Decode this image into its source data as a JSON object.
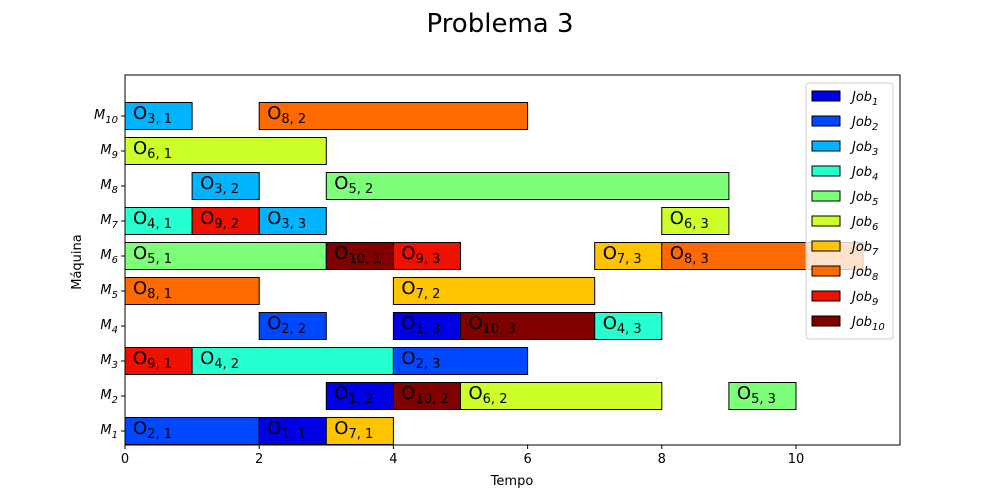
{
  "chart_data": {
    "type": "gantt",
    "title": "Problema 3",
    "xlabel": "Tempo",
    "ylabel": "Máquina",
    "xlim": [
      0,
      11.55
    ],
    "xticks": [
      0,
      2,
      4,
      6,
      8,
      10
    ],
    "machines": [
      {
        "name": "M",
        "sub": "1"
      },
      {
        "name": "M",
        "sub": "2"
      },
      {
        "name": "M",
        "sub": "3"
      },
      {
        "name": "M",
        "sub": "4"
      },
      {
        "name": "M",
        "sub": "5"
      },
      {
        "name": "M",
        "sub": "6"
      },
      {
        "name": "M",
        "sub": "7"
      },
      {
        "name": "M",
        "sub": "8"
      },
      {
        "name": "M",
        "sub": "9"
      },
      {
        "name": "M",
        "sub": "10"
      }
    ],
    "jobs": [
      {
        "name": "Job",
        "sub": "1",
        "color": "#0000e6"
      },
      {
        "name": "Job",
        "sub": "2",
        "color": "#0048ff"
      },
      {
        "name": "Job",
        "sub": "3",
        "color": "#00b4ff"
      },
      {
        "name": "Job",
        "sub": "4",
        "color": "#26ffcf"
      },
      {
        "name": "Job",
        "sub": "5",
        "color": "#7dff7a"
      },
      {
        "name": "Job",
        "sub": "6",
        "color": "#cdff29"
      },
      {
        "name": "Job",
        "sub": "7",
        "color": "#ffc400"
      },
      {
        "name": "Job",
        "sub": "8",
        "color": "#ff6a00"
      },
      {
        "name": "Job",
        "sub": "9",
        "color": "#f01000"
      },
      {
        "name": "Job",
        "sub": "10",
        "color": "#800000"
      }
    ],
    "legend_position": "upper right",
    "operations": [
      {
        "machine": 1,
        "job": 2,
        "op": 1,
        "start": 0,
        "end": 2,
        "label": "O",
        "sub": "2, 1"
      },
      {
        "machine": 1,
        "job": 1,
        "op": 1,
        "start": 2,
        "end": 3,
        "label": "O",
        "sub": "1, 1"
      },
      {
        "machine": 1,
        "job": 7,
        "op": 1,
        "start": 3,
        "end": 4,
        "label": "O",
        "sub": "7, 1"
      },
      {
        "machine": 2,
        "job": 1,
        "op": 2,
        "start": 3,
        "end": 4,
        "label": "O",
        "sub": "1, 2"
      },
      {
        "machine": 2,
        "job": 10,
        "op": 2,
        "start": 4,
        "end": 5,
        "label": "O",
        "sub": "10, 2"
      },
      {
        "machine": 2,
        "job": 6,
        "op": 2,
        "start": 5,
        "end": 8,
        "label": "O",
        "sub": "6, 2"
      },
      {
        "machine": 2,
        "job": 5,
        "op": 3,
        "start": 9,
        "end": 10,
        "label": "O",
        "sub": "5, 3"
      },
      {
        "machine": 3,
        "job": 9,
        "op": 1,
        "start": 0,
        "end": 1,
        "label": "O",
        "sub": "9, 1"
      },
      {
        "machine": 3,
        "job": 4,
        "op": 2,
        "start": 1,
        "end": 4,
        "label": "O",
        "sub": "4, 2"
      },
      {
        "machine": 3,
        "job": 2,
        "op": 3,
        "start": 4,
        "end": 6,
        "label": "O",
        "sub": "2, 3"
      },
      {
        "machine": 4,
        "job": 2,
        "op": 2,
        "start": 2,
        "end": 3,
        "label": "O",
        "sub": "2, 2"
      },
      {
        "machine": 4,
        "job": 1,
        "op": 3,
        "start": 4,
        "end": 5,
        "label": "O",
        "sub": "1, 3"
      },
      {
        "machine": 4,
        "job": 10,
        "op": 3,
        "start": 5,
        "end": 7,
        "label": "O",
        "sub": "10, 3"
      },
      {
        "machine": 4,
        "job": 4,
        "op": 3,
        "start": 7,
        "end": 8,
        "label": "O",
        "sub": "4, 3"
      },
      {
        "machine": 5,
        "job": 8,
        "op": 1,
        "start": 0,
        "end": 2,
        "label": "O",
        "sub": "8, 1"
      },
      {
        "machine": 5,
        "job": 7,
        "op": 2,
        "start": 4,
        "end": 7,
        "label": "O",
        "sub": "7, 2"
      },
      {
        "machine": 6,
        "job": 5,
        "op": 1,
        "start": 0,
        "end": 3,
        "label": "O",
        "sub": "5, 1"
      },
      {
        "machine": 6,
        "job": 10,
        "op": 1,
        "start": 3,
        "end": 4,
        "label": "O",
        "sub": "10, 1"
      },
      {
        "machine": 6,
        "job": 9,
        "op": 3,
        "start": 4,
        "end": 5,
        "label": "O",
        "sub": "9, 3"
      },
      {
        "machine": 6,
        "job": 7,
        "op": 3,
        "start": 7,
        "end": 8,
        "label": "O",
        "sub": "7, 3"
      },
      {
        "machine": 6,
        "job": 8,
        "op": 3,
        "start": 8,
        "end": 11,
        "label": "O",
        "sub": "8, 3"
      },
      {
        "machine": 7,
        "job": 4,
        "op": 1,
        "start": 0,
        "end": 1,
        "label": "O",
        "sub": "4, 1"
      },
      {
        "machine": 7,
        "job": 9,
        "op": 2,
        "start": 1,
        "end": 2,
        "label": "O",
        "sub": "9, 2"
      },
      {
        "machine": 7,
        "job": 3,
        "op": 3,
        "start": 2,
        "end": 3,
        "label": "O",
        "sub": "3, 3"
      },
      {
        "machine": 7,
        "job": 6,
        "op": 3,
        "start": 8,
        "end": 9,
        "label": "O",
        "sub": "6, 3"
      },
      {
        "machine": 8,
        "job": 3,
        "op": 2,
        "start": 1,
        "end": 2,
        "label": "O",
        "sub": "3, 2"
      },
      {
        "machine": 8,
        "job": 5,
        "op": 2,
        "start": 3,
        "end": 9,
        "label": "O",
        "sub": "5, 2"
      },
      {
        "machine": 9,
        "job": 6,
        "op": 1,
        "start": 0,
        "end": 3,
        "label": "O",
        "sub": "6, 1"
      },
      {
        "machine": 10,
        "job": 3,
        "op": 1,
        "start": 0,
        "end": 1,
        "label": "O",
        "sub": "3, 1"
      },
      {
        "machine": 10,
        "job": 8,
        "op": 2,
        "start": 2,
        "end": 6,
        "label": "O",
        "sub": "8, 2"
      }
    ]
  }
}
